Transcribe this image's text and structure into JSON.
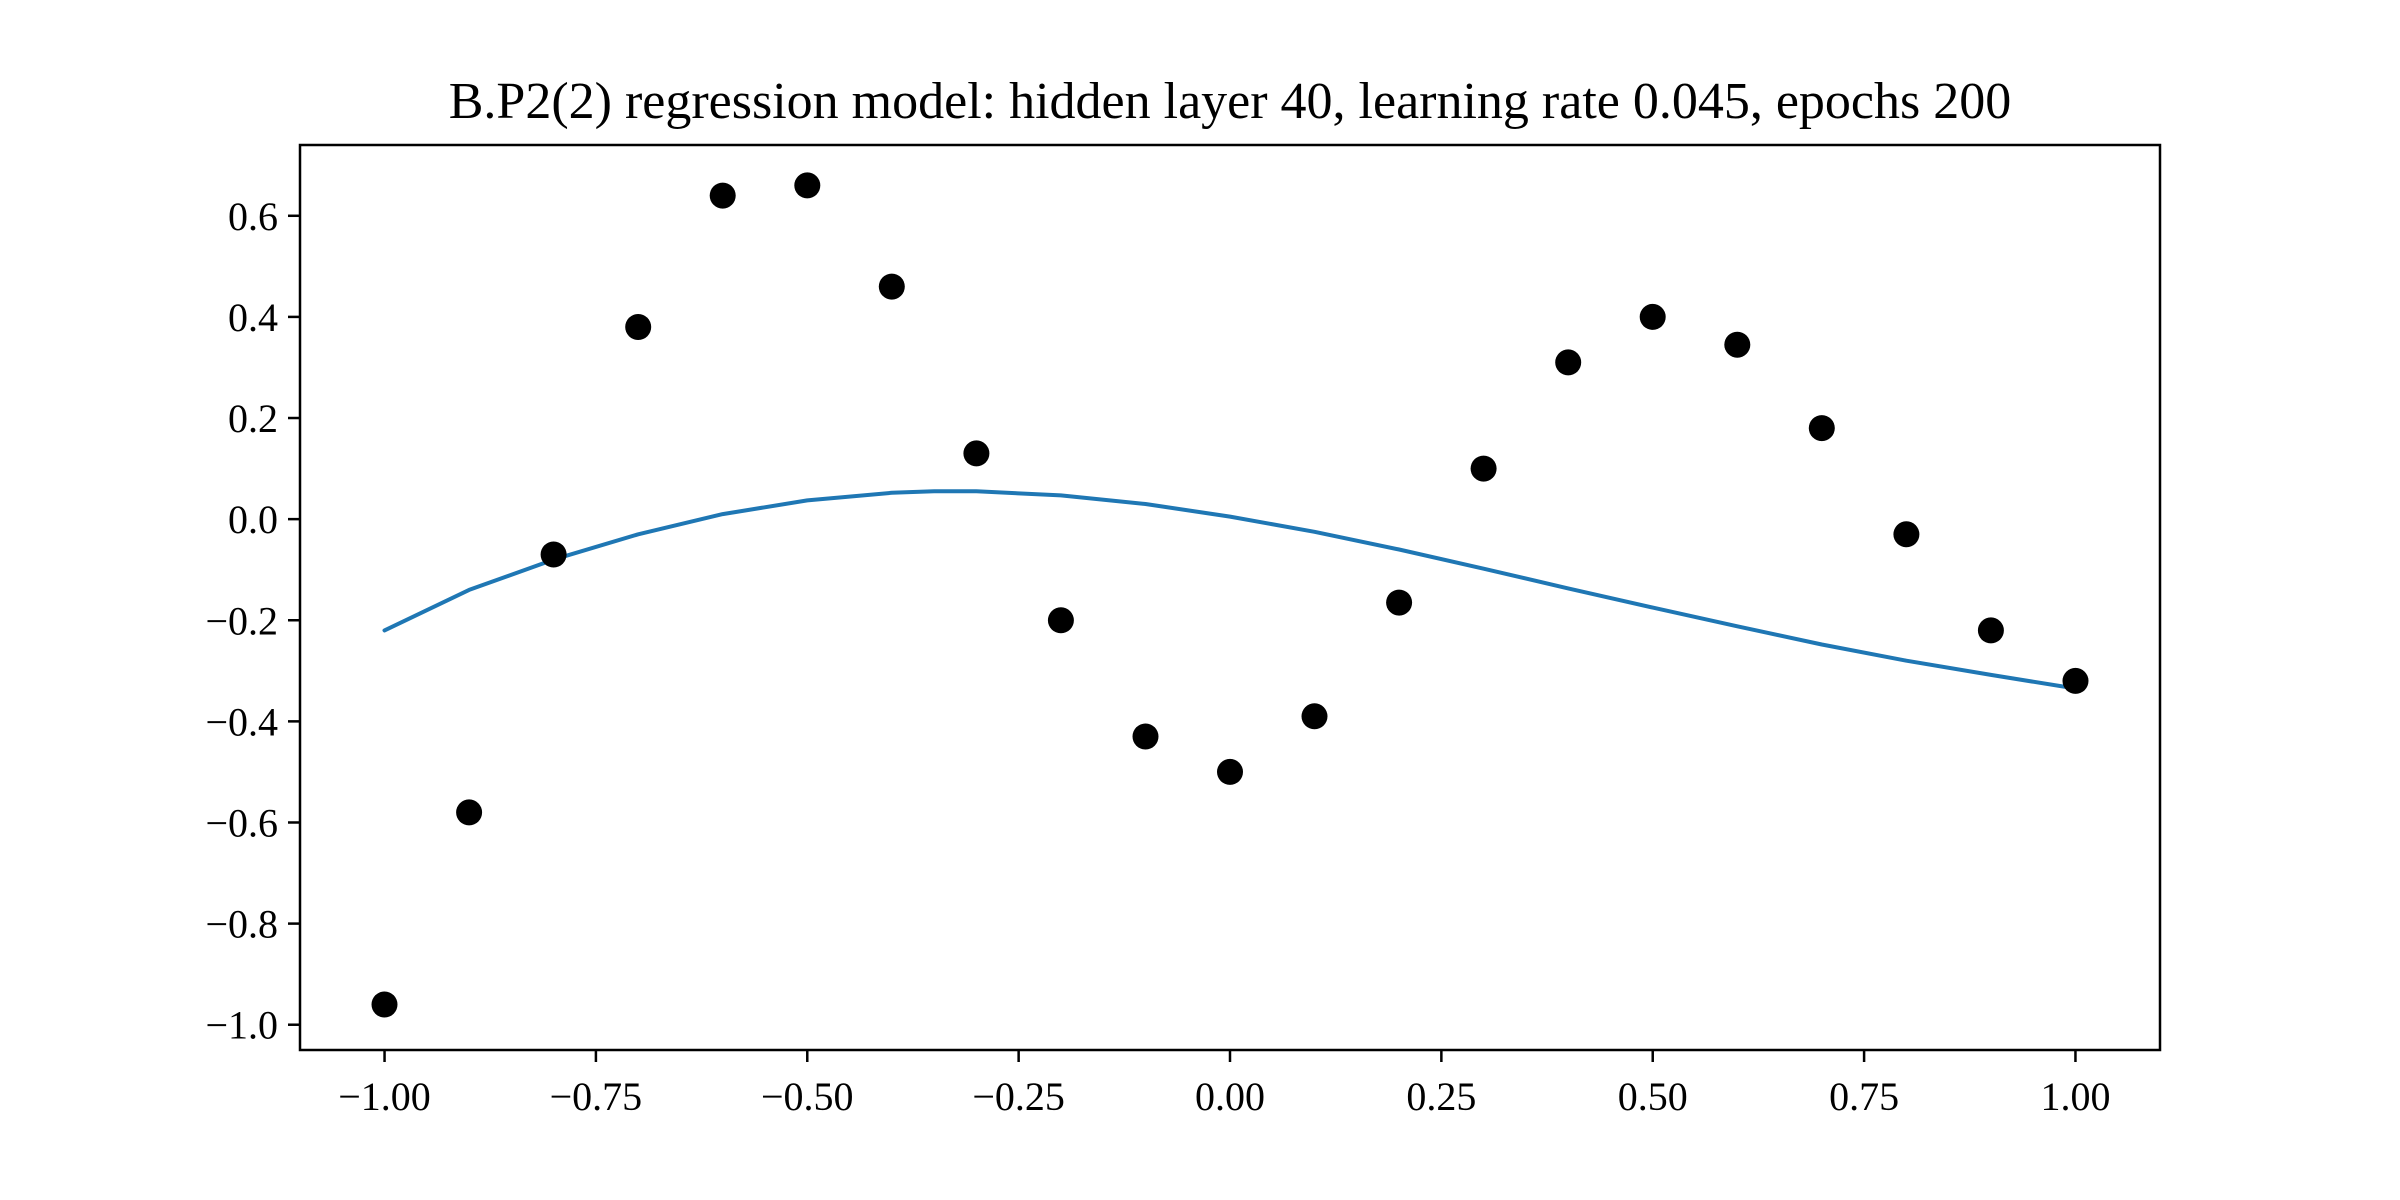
{
  "chart_data": {
    "type": "scatter",
    "title": "B.P2(2) regression model: hidden layer 40, learning rate 0.045, epochs 200",
    "xlabel": "",
    "ylabel": "",
    "xlim": [
      -1.1,
      1.1
    ],
    "ylim": [
      -1.05,
      0.74
    ],
    "grid": false,
    "xticks": [
      -1.0,
      -0.75,
      -0.5,
      -0.25,
      0.0,
      0.25,
      0.5,
      0.75,
      1.0
    ],
    "xtick_labels": [
      "−1.00",
      "−0.75",
      "−0.50",
      "−0.25",
      "0.00",
      "0.25",
      "0.50",
      "0.75",
      "1.00"
    ],
    "yticks": [
      -1.0,
      -0.8,
      -0.6,
      -0.4,
      -0.2,
      0.0,
      0.2,
      0.4,
      0.6
    ],
    "ytick_labels": [
      "−1.0",
      "−0.8",
      "−0.6",
      "−0.4",
      "−0.2",
      "0.0",
      "0.2",
      "0.4",
      "0.6"
    ],
    "series": [
      {
        "kind": "scatter",
        "color": "#000000",
        "x": [
          -1.0,
          -0.9,
          -0.8,
          -0.7,
          -0.6,
          -0.5,
          -0.4,
          -0.3,
          -0.2,
          -0.1,
          0.0,
          0.1,
          0.2,
          0.3,
          0.4,
          0.5,
          0.6,
          0.7,
          0.8,
          0.9,
          1.0
        ],
        "y": [
          -0.96,
          -0.58,
          -0.07,
          0.38,
          0.64,
          0.66,
          0.46,
          0.13,
          -0.2,
          -0.43,
          -0.5,
          -0.39,
          -0.165,
          0.1,
          0.31,
          0.4,
          0.345,
          0.18,
          -0.03,
          -0.22,
          -0.32
        ]
      },
      {
        "kind": "line",
        "color": "#1f77b4",
        "x": [
          -1.0,
          -0.9,
          -0.8,
          -0.7,
          -0.6,
          -0.5,
          -0.4,
          -0.35,
          -0.3,
          -0.2,
          -0.1,
          0.0,
          0.1,
          0.2,
          0.3,
          0.4,
          0.5,
          0.6,
          0.7,
          0.8,
          0.9,
          1.0
        ],
        "y": [
          -0.22,
          -0.14,
          -0.08,
          -0.03,
          0.01,
          0.037,
          0.052,
          0.055,
          0.055,
          0.047,
          0.03,
          0.005,
          -0.025,
          -0.06,
          -0.098,
          -0.137,
          -0.175,
          -0.212,
          -0.248,
          -0.28,
          -0.308,
          -0.335
        ]
      }
    ]
  }
}
